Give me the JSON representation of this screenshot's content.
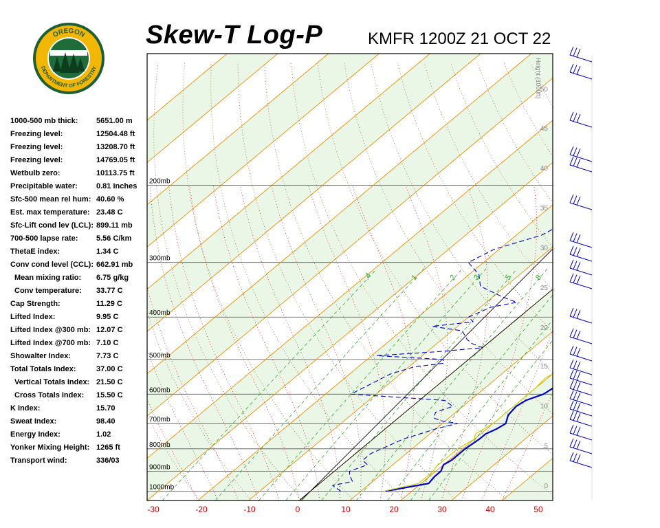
{
  "header": {
    "title": "Skew-T Log-P",
    "station_time": "KMFR 1200Z 21 OCT 22"
  },
  "logo": {
    "text_top": "OREGON",
    "text_bottom": "DEPARTMENT OF FORESTRY",
    "colors": {
      "ring": "#f2b705",
      "field": "#1f6b3a",
      "border": "#1f5e33"
    }
  },
  "indices": [
    {
      "label": "1000-500 mb thick:",
      "value": "5651.00 m"
    },
    {
      "label": "Freezing level:",
      "value": "12504.48 ft"
    },
    {
      "label": "Freezing level:",
      "value": "13208.70 ft"
    },
    {
      "label": "Freezing level:",
      "value": "14769.05 ft"
    },
    {
      "label": "Wetbulb zero:",
      "value": "10113.75 ft"
    },
    {
      "label": "Precipitable water:",
      "value": "0.81 inches"
    },
    {
      "label": "Sfc-500 mean rel hum:",
      "value": "40.60 %"
    },
    {
      "label": "Est. max temperature:",
      "value": "23.48 C"
    },
    {
      "label": "Sfc-Lift cond lev (LCL):",
      "value": "899.11 mb"
    },
    {
      "label": "700-500 lapse rate:",
      "value": "5.56 C/km"
    },
    {
      "label": "ThetaE index:",
      "value": "1.34 C"
    },
    {
      "label": "Conv cond level (CCL):",
      "value": "662.91 mb"
    },
    {
      "label": "Mean mixing ratio:",
      "value": "6.75 g/kg",
      "indent": true
    },
    {
      "label": "Conv temperature:",
      "value": "33.77 C",
      "indent": true
    },
    {
      "label": "Cap Strength:",
      "value": "11.29 C"
    },
    {
      "label": "Lifted Index:",
      "value": "9.95 C"
    },
    {
      "label": "Lifted Index @300 mb:",
      "value": "12.07 C"
    },
    {
      "label": "Lifted Index @700 mb:",
      "value": "7.10 C"
    },
    {
      "label": "Showalter Index:",
      "value": "7.73 C"
    },
    {
      "label": "Total Totals Index:",
      "value": "37.00 C"
    },
    {
      "label": "Vertical Totals Index:",
      "value": "21.50 C",
      "indent": true
    },
    {
      "label": "Cross Totals Index:",
      "value": "15.50 C",
      "indent": true
    },
    {
      "label": "K Index:",
      "value": "15.70"
    },
    {
      "label": "Sweat Index:",
      "value": "98.40"
    },
    {
      "label": "Energy Index:",
      "value": "1.02"
    },
    {
      "label": "Yonker Mixing Height:",
      "value": "1265 ft"
    },
    {
      "label": "Transport wind:",
      "value": "336/03"
    }
  ],
  "chart_data": {
    "type": "line",
    "diagram": "skew-t log-p",
    "x_axis": {
      "ticks": [
        -30,
        -20,
        -10,
        0,
        10,
        20,
        30,
        40,
        50
      ],
      "range": [
        -30,
        50
      ],
      "unit": "C",
      "tick_color": "#cc0000"
    },
    "pressure_axis": {
      "levels": [
        200,
        300,
        400,
        500,
        600,
        700,
        800,
        900,
        1000
      ],
      "labels": [
        "200mb",
        "300mb",
        "400mb",
        "500mb",
        "600mb",
        "700mb",
        "800mb",
        "900mb",
        "1000mb"
      ],
      "range": [
        1050,
        100
      ],
      "scale": "log"
    },
    "height_axis": {
      "title": "Height (1000ft)",
      "ticks": [
        "0",
        "5",
        "10",
        "15",
        "20",
        "25",
        "30",
        "35",
        "40",
        "45",
        "50"
      ]
    },
    "mixing_ratio_labels": [
      ".4",
      "1",
      "2",
      "3",
      "5",
      "8"
    ],
    "series": [
      {
        "role": "temperature",
        "style": "solid",
        "color": "#0000cc",
        "points": [
          [
            1000,
            14.8
          ],
          [
            960,
            21.5
          ],
          [
            925,
            21
          ],
          [
            900,
            21
          ],
          [
            870,
            20
          ],
          [
            850,
            20.5
          ],
          [
            800,
            20.5
          ],
          [
            760,
            21
          ],
          [
            740,
            21
          ],
          [
            720,
            22
          ],
          [
            700,
            22.5
          ],
          [
            690,
            22
          ],
          [
            670,
            21
          ],
          [
            640,
            20.5
          ],
          [
            620,
            21
          ],
          [
            600,
            23
          ],
          [
            580,
            23.5
          ],
          [
            550,
            23
          ],
          [
            500,
            20.5
          ],
          [
            470,
            19
          ],
          [
            440,
            18
          ],
          [
            410,
            17
          ],
          [
            400,
            17
          ],
          [
            380,
            16
          ],
          [
            350,
            15.5
          ],
          [
            320,
            14
          ],
          [
            300,
            13
          ],
          [
            270,
            11
          ],
          [
            250,
            9
          ],
          [
            230,
            7.5
          ],
          [
            200,
            4
          ],
          [
            190,
            5
          ],
          [
            170,
            8
          ],
          [
            150,
            11
          ],
          [
            130,
            14
          ],
          [
            113,
            18
          ]
        ]
      },
      {
        "role": "dewpoint",
        "style": "dashed",
        "color": "#0000cc",
        "points": [
          [
            1000,
            6
          ],
          [
            970,
            3
          ],
          [
            950,
            6
          ],
          [
            920,
            4
          ],
          [
            900,
            3
          ],
          [
            870,
            5
          ],
          [
            850,
            3
          ],
          [
            820,
            3
          ],
          [
            800,
            4
          ],
          [
            780,
            5
          ],
          [
            760,
            6
          ],
          [
            740,
            8
          ],
          [
            720,
            10
          ],
          [
            700,
            13
          ],
          [
            690,
            9
          ],
          [
            680,
            7
          ],
          [
            660,
            6
          ],
          [
            640,
            8
          ],
          [
            620,
            5
          ],
          [
            600,
            -15
          ],
          [
            580,
            -14
          ],
          [
            560,
            -13
          ],
          [
            540,
            -12
          ],
          [
            520,
            -9
          ],
          [
            510,
            -4
          ],
          [
            500,
            -5
          ],
          [
            490,
            -19
          ],
          [
            480,
            -8
          ],
          [
            470,
            0
          ],
          [
            460,
            -3
          ],
          [
            450,
            -5
          ],
          [
            430,
            -8
          ],
          [
            420,
            -15
          ],
          [
            410,
            -8
          ],
          [
            400,
            -10
          ],
          [
            380,
            -8
          ],
          [
            370,
            -4
          ],
          [
            360,
            -8
          ],
          [
            340,
            -15
          ],
          [
            320,
            -18
          ],
          [
            300,
            -23
          ],
          [
            280,
            -21
          ],
          [
            260,
            -15
          ],
          [
            240,
            -13
          ],
          [
            220,
            -13
          ],
          [
            200,
            -10
          ],
          [
            170,
            -19
          ],
          [
            150,
            -22
          ],
          [
            130,
            -17
          ],
          [
            120,
            -13
          ],
          [
            113,
            -12
          ]
        ]
      },
      {
        "role": "parcel",
        "style": "solid",
        "color": "#cccc00",
        "points": [
          [
            1000,
            14.5
          ],
          [
            960,
            19.5
          ],
          [
            900,
            19.5
          ],
          [
            880,
            19
          ],
          [
            850,
            19
          ],
          [
            800,
            19
          ],
          [
            760,
            20
          ],
          [
            740,
            19
          ],
          [
            720,
            19.5
          ],
          [
            700,
            20
          ],
          [
            650,
            20
          ],
          [
            600,
            20
          ],
          [
            580,
            20
          ],
          [
            550,
            19.5
          ],
          [
            520,
            21
          ],
          [
            500,
            21
          ],
          [
            470,
            21.5
          ],
          [
            440,
            21
          ],
          [
            400,
            19
          ],
          [
            380,
            17
          ],
          [
            360,
            14
          ],
          [
            340,
            12
          ],
          [
            320,
            10
          ]
        ]
      }
    ],
    "wind_barbs_side": "right",
    "ref_lines": [
      "isotherms",
      "dry adiabats",
      "moist adiabats",
      "mixing ratio"
    ]
  }
}
